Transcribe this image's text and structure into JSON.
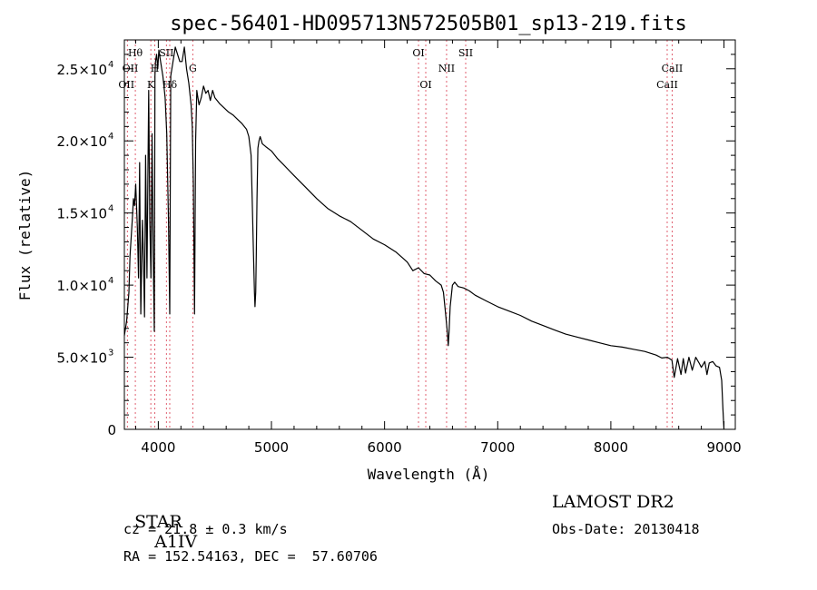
{
  "chart_data": {
    "type": "line",
    "title": "spec-56401-HD095713N572505B01_sp13-219.fits",
    "xlabel": "Wavelength (Å)",
    "ylabel": "Flux (relative)",
    "xlim": [
      3700,
      9100
    ],
    "ylim": [
      0,
      27000
    ],
    "grid": false,
    "x_ticks": [
      4000,
      5000,
      6000,
      7000,
      8000,
      9000
    ],
    "x_tick_labels": [
      "4000",
      "5000",
      "6000",
      "7000",
      "8000",
      "9000"
    ],
    "y_ticks": [
      0,
      5000,
      10000,
      15000,
      20000,
      25000
    ],
    "y_tick_labels": [
      {
        "mant": "0",
        "exp": ""
      },
      {
        "mant": "5.0×10",
        "exp": "3"
      },
      {
        "mant": "1.0×10",
        "exp": "4"
      },
      {
        "mant": "1.5×10",
        "exp": "4"
      },
      {
        "mant": "2.0×10",
        "exp": "4"
      },
      {
        "mant": "2.5×10",
        "exp": "4"
      }
    ],
    "series": [
      {
        "x": [
          3700,
          3720,
          3740,
          3750,
          3770,
          3780,
          3790,
          3800,
          3815,
          3825,
          3835,
          3845,
          3860,
          3870,
          3878,
          3888,
          3900,
          3915,
          3925,
          3935,
          3945,
          3955,
          3965,
          3970,
          3975,
          3985,
          3995,
          4005,
          4020,
          4040,
          4060,
          4075,
          4090,
          4101,
          4110,
          4130,
          4150,
          4170,
          4190,
          4210,
          4230,
          4250,
          4270,
          4290,
          4300,
          4310,
          4320,
          4330,
          4340,
          4350,
          4360,
          4380,
          4400,
          4420,
          4440,
          4460,
          4480,
          4500,
          4540,
          4580,
          4620,
          4660,
          4700,
          4740,
          4780,
          4800,
          4820,
          4830,
          4840,
          4850,
          4855,
          4861,
          4866,
          4872,
          4880,
          4890,
          4900,
          4920,
          4950,
          5000,
          5050,
          5100,
          5150,
          5200,
          5300,
          5400,
          5500,
          5600,
          5700,
          5800,
          5900,
          6000,
          6100,
          6200,
          6250,
          6300,
          6350,
          6400,
          6450,
          6500,
          6520,
          6540,
          6555,
          6563,
          6570,
          6580,
          6600,
          6620,
          6650,
          6700,
          6750,
          6800,
          6900,
          7000,
          7100,
          7200,
          7300,
          7400,
          7500,
          7600,
          7700,
          7800,
          7900,
          8000,
          8100,
          8200,
          8300,
          8400,
          8450,
          8500,
          8540,
          8560,
          8590,
          8620,
          8640,
          8660,
          8690,
          8720,
          8750,
          8780,
          8800,
          8830,
          8850,
          8870,
          8900,
          8930,
          8960,
          8980,
          8990,
          9000
        ],
        "y": [
          6500,
          7500,
          9500,
          12000,
          14500,
          16000,
          15500,
          17000,
          14000,
          10500,
          18500,
          8000,
          14500,
          11500,
          7800,
          19000,
          10500,
          23500,
          14500,
          10500,
          20500,
          12000,
          6800,
          24500,
          25500,
          26000,
          25000,
          26300,
          25500,
          24500,
          23000,
          20500,
          14500,
          8000,
          24500,
          25500,
          26500,
          26000,
          25500,
          25500,
          26500,
          25000,
          24000,
          22500,
          21000,
          17000,
          8000,
          20000,
          23500,
          23000,
          22500,
          23000,
          23800,
          23300,
          23500,
          22800,
          23500,
          23000,
          22600,
          22300,
          22000,
          21800,
          21500,
          21200,
          20800,
          20300,
          19000,
          16000,
          12500,
          9500,
          8500,
          9500,
          12000,
          16000,
          19500,
          20000,
          20300,
          19800,
          19600,
          19300,
          18800,
          18400,
          18000,
          17600,
          16800,
          16000,
          15300,
          14800,
          14400,
          13800,
          13200,
          12800,
          12300,
          11600,
          11000,
          11200,
          10800,
          10700,
          10300,
          10000,
          9500,
          8000,
          6700,
          5800,
          6800,
          8500,
          10000,
          10200,
          9900,
          9800,
          9600,
          9300,
          8900,
          8500,
          8200,
          7900,
          7500,
          7200,
          6900,
          6600,
          6400,
          6200,
          6000,
          5800,
          5700,
          5550,
          5400,
          5150,
          4950,
          5000,
          4800,
          3600,
          4900,
          3800,
          4900,
          3900,
          5000,
          4100,
          5000,
          4600,
          4300,
          4700,
          3800,
          4600,
          4700,
          4400,
          4300,
          3400,
          1500,
          0
        ]
      }
    ],
    "line_markers": [
      {
        "label": "Hθ",
        "x": 3797,
        "row": 1,
        "anchor": "middle"
      },
      {
        "label": "OII",
        "x": 3727,
        "row": 2,
        "anchor": "end"
      },
      {
        "label": "OII",
        "x": 3727,
        "row": 3,
        "anchor": "start"
      },
      {
        "label": "K",
        "x": 3934,
        "row": 3,
        "anchor": "middle"
      },
      {
        "label": "H",
        "x": 3969,
        "row": 2,
        "anchor": "middle"
      },
      {
        "label": "SII",
        "x": 4072,
        "row": 1,
        "anchor": "middle"
      },
      {
        "label": "Hδ",
        "x": 4101,
        "row": 3,
        "anchor": "middle"
      },
      {
        "label": "G",
        "x": 4305,
        "row": 2,
        "anchor": "middle"
      },
      {
        "label": "OI",
        "x": 6300,
        "row": 1,
        "anchor": "middle"
      },
      {
        "label": "OI",
        "x": 6364,
        "row": 3,
        "anchor": "middle"
      },
      {
        "label": "NII",
        "x": 6548,
        "row": 2,
        "anchor": "middle"
      },
      {
        "label": "SII",
        "x": 6717,
        "row": 1,
        "anchor": "middle"
      },
      {
        "label": "CaII",
        "x": 8542,
        "row": 2,
        "anchor": "middle"
      },
      {
        "label": "CaII",
        "x": 8498,
        "row": 3,
        "anchor": "middle"
      }
    ],
    "line_positions": [
      3727,
      3797,
      3934,
      3969,
      4072,
      4101,
      4305,
      6300,
      6364,
      6548,
      6717,
      8498,
      8542
    ],
    "marker_color": "#e06070"
  },
  "info": {
    "class": "STAR",
    "subclass": "A1IV",
    "survey": "LAMOST DR2",
    "cz_prefix": "cz = 21.8 ",
    "pm": "±",
    "cz_suffix": " 0.3 km/s",
    "obs_date": "Obs-Date: 20130418",
    "radec": "RA = 152.54163, DEC =  57.60706"
  }
}
